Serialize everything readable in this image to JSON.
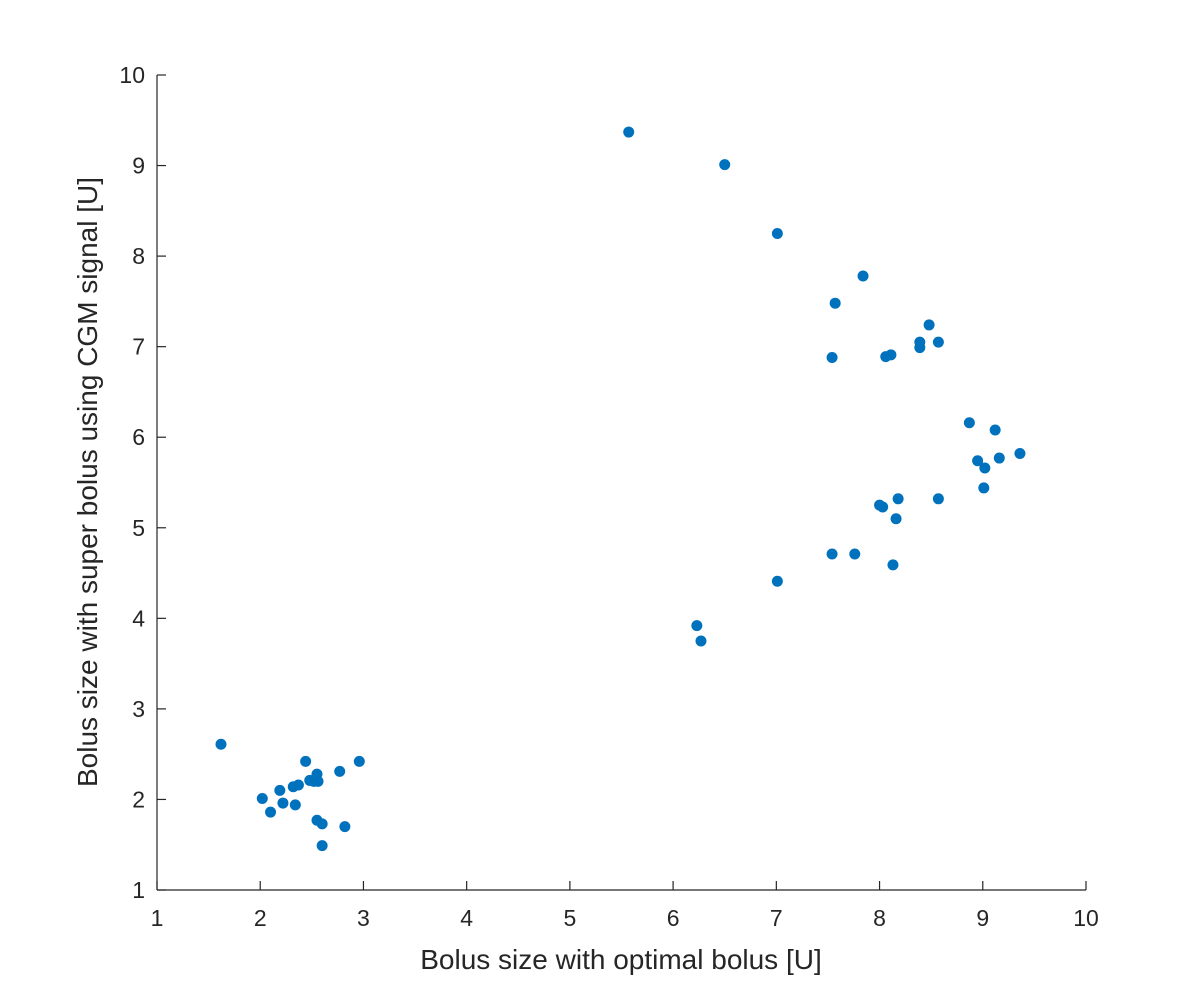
{
  "chart_data": {
    "type": "scatter",
    "title": "",
    "xlabel": "Bolus size with optimal bolus [U]",
    "ylabel": "Bolus size with super bolus using CGM signal [U]",
    "xlim": [
      1,
      10
    ],
    "ylim": [
      1,
      10
    ],
    "xticks": [
      "1",
      "2",
      "3",
      "4",
      "5",
      "6",
      "7",
      "8",
      "9",
      "10"
    ],
    "yticks": [
      "1",
      "2",
      "3",
      "4",
      "5",
      "6",
      "7",
      "8",
      "9",
      "10"
    ],
    "grid": false,
    "marker_color": "#0072BD",
    "series": [
      {
        "points": [
          [
            1.62,
            2.61
          ],
          [
            2.02,
            2.01
          ],
          [
            2.1,
            1.86
          ],
          [
            2.19,
            2.1
          ],
          [
            2.22,
            1.96
          ],
          [
            2.32,
            2.14
          ],
          [
            2.34,
            1.94
          ],
          [
            2.37,
            2.16
          ],
          [
            2.44,
            2.42
          ],
          [
            2.48,
            2.21
          ],
          [
            2.52,
            2.2
          ],
          [
            2.55,
            2.28
          ],
          [
            2.56,
            2.2
          ],
          [
            2.55,
            1.77
          ],
          [
            2.6,
            1.73
          ],
          [
            2.6,
            1.49
          ],
          [
            2.77,
            2.31
          ],
          [
            2.82,
            1.7
          ],
          [
            2.96,
            2.42
          ],
          [
            5.57,
            9.37
          ],
          [
            6.5,
            9.01
          ],
          [
            7.01,
            8.25
          ],
          [
            7.57,
            7.48
          ],
          [
            7.84,
            7.78
          ],
          [
            7.54,
            6.88
          ],
          [
            8.06,
            6.89
          ],
          [
            8.11,
            6.91
          ],
          [
            8.39,
            6.99
          ],
          [
            8.39,
            7.05
          ],
          [
            8.48,
            7.24
          ],
          [
            8.57,
            7.05
          ],
          [
            6.23,
            3.92
          ],
          [
            6.27,
            3.75
          ],
          [
            7.01,
            4.41
          ],
          [
            7.54,
            4.71
          ],
          [
            7.76,
            4.71
          ],
          [
            8.0,
            5.25
          ],
          [
            8.03,
            5.23
          ],
          [
            8.13,
            4.59
          ],
          [
            8.16,
            5.1
          ],
          [
            8.18,
            5.32
          ],
          [
            8.57,
            5.32
          ],
          [
            8.87,
            6.16
          ],
          [
            8.95,
            5.74
          ],
          [
            9.01,
            5.44
          ],
          [
            9.02,
            5.66
          ],
          [
            9.12,
            6.08
          ],
          [
            9.16,
            5.77
          ],
          [
            9.36,
            5.82
          ]
        ]
      }
    ]
  }
}
